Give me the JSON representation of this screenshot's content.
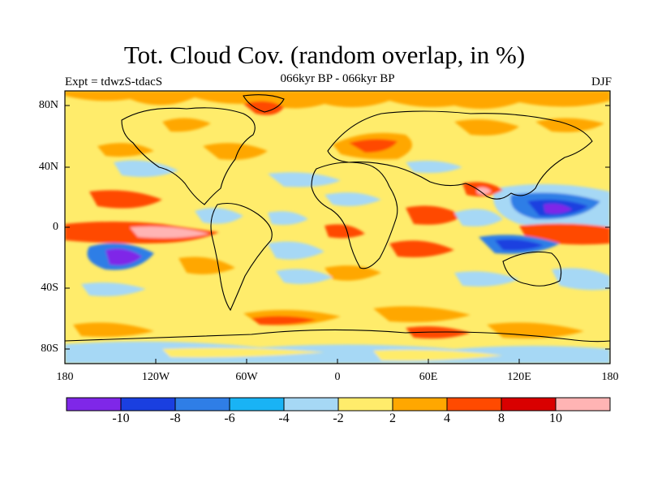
{
  "title": "Tot. Cloud Cov. (random overlap, in %)",
  "subtitle": "066kyr BP - 066kyr BP",
  "experiment_label": "Expt = tdwzS-tdacS",
  "season_label": "DJF",
  "map": {
    "lat_ticks": [
      "80N",
      "40N",
      "0",
      "40S",
      "80S"
    ],
    "lon_ticks": [
      "180",
      "120W",
      "60W",
      "0",
      "60E",
      "120E",
      "180"
    ]
  },
  "colorbar": {
    "labels": [
      "-10",
      "-8",
      "-6",
      "-4",
      "-2",
      "2",
      "4",
      "8",
      "10"
    ],
    "colors": [
      "#7f27e8",
      "#1a3fe0",
      "#2f7ee6",
      "#19b3f5",
      "#a6d8f5",
      "#ffec6b",
      "#ffa700",
      "#ff4a00",
      "#d90000",
      "#ffb4b4"
    ]
  }
}
